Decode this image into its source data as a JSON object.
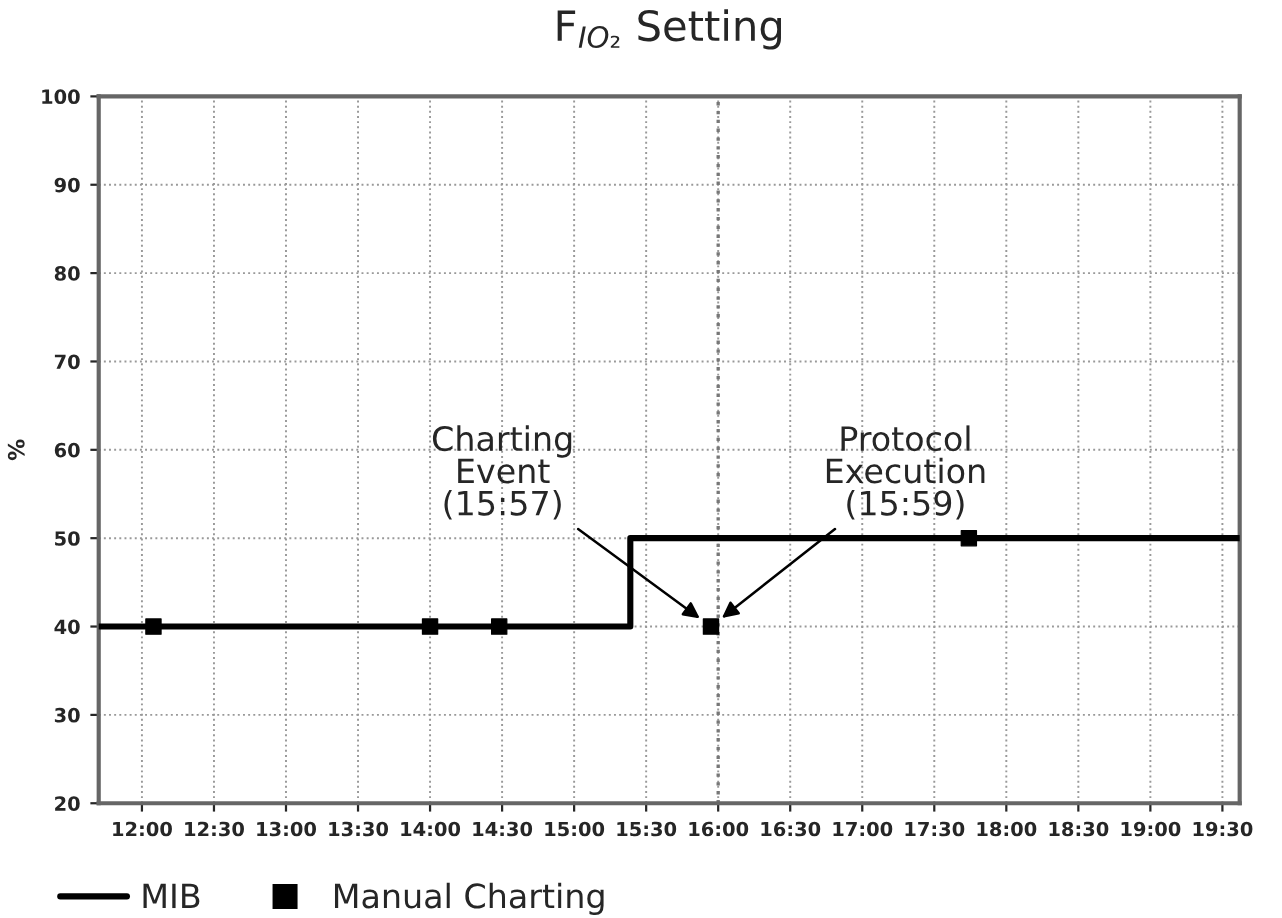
{
  "chart_data": {
    "type": "step",
    "title": "F$_{IO₂}$ Setting",
    "ylabel": "%",
    "xlim": [
      11.7,
      19.62
    ],
    "ylim": [
      20,
      100
    ],
    "xticks": [
      {
        "value": 12,
        "label": "12:00"
      },
      {
        "value": 12.5,
        "label": "12:30"
      },
      {
        "value": 13,
        "label": "13:00"
      },
      {
        "value": 13.5,
        "label": "13:30"
      },
      {
        "value": 14,
        "label": "14:00"
      },
      {
        "value": 14.5,
        "label": "14:30"
      },
      {
        "value": 15,
        "label": "15:00"
      },
      {
        "value": 15.5,
        "label": "15:30"
      },
      {
        "value": 16,
        "label": "16:00"
      },
      {
        "value": 16.5,
        "label": "16:30"
      },
      {
        "value": 17,
        "label": "17:00"
      },
      {
        "value": 17.5,
        "label": "17:30"
      },
      {
        "value": 18,
        "label": "18:00"
      },
      {
        "value": 18.5,
        "label": "18:30"
      },
      {
        "value": 19,
        "label": "19:00"
      },
      {
        "value": 19.5,
        "label": "19:30"
      }
    ],
    "yticks": [
      20,
      30,
      40,
      50,
      60,
      70,
      80,
      90,
      100
    ],
    "series": [
      {
        "name": "MIB",
        "color": "#000000",
        "x": [
          11.7,
          15.39,
          19.62
        ],
        "values": [
          40,
          50,
          50
        ],
        "marker": "none",
        "line_style": "solid"
      },
      {
        "name": "Manual Charting",
        "type": "scatter",
        "color": "#000000",
        "x": [
          12.08,
          14.0,
          14.48,
          15.95,
          17.74
        ],
        "values": [
          40,
          40,
          40,
          40,
          50
        ],
        "marker": "square"
      }
    ],
    "ref_lines": [
      {
        "axis": "x",
        "value": 16,
        "color": "#777777",
        "line_style": "dotted"
      }
    ],
    "annotations": [
      {
        "text": "Charting\nEvent\n(15:57)",
        "x": 15.95,
        "y": 40
      },
      {
        "text": "Protocol\nExecution\n(15:59)",
        "x": 15.95,
        "y": 40
      }
    ],
    "grid": true,
    "legend": "bottom left"
  }
}
